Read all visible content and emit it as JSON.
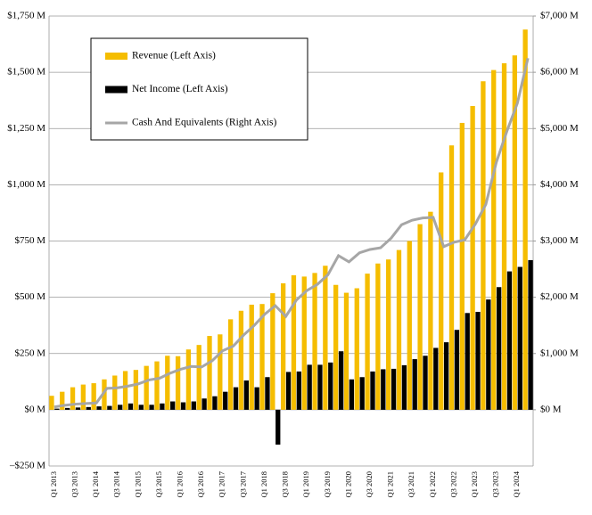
{
  "chart_data": {
    "type": "bar",
    "categories": [
      "Q1 2013",
      null,
      "Q3 2013",
      null,
      "Q1 2014",
      null,
      "Q3 2014",
      null,
      "Q1 2015",
      null,
      "Q3 2015",
      null,
      "Q1 2016",
      null,
      "Q3 2016",
      null,
      "Q1 2017",
      null,
      "Q3 2017",
      null,
      "Q1 2018",
      null,
      "Q3 2018",
      null,
      "Q1 2019",
      null,
      "Q3 2019",
      null,
      "Q1 2020",
      null,
      "Q3 2020",
      null,
      "Q1 2021",
      null,
      "Q3 2021",
      null,
      "Q1 2022",
      null,
      "Q3 2022",
      null,
      "Q1 2023",
      null,
      "Q3 2023",
      null,
      "Q1 2024",
      null
    ],
    "series": [
      {
        "name": "Revenue (Left Axis)",
        "color": "#f5bd00",
        "values": [
          62,
          80,
          100,
          112,
          118,
          135,
          152,
          172,
          177,
          195,
          215,
          240,
          238,
          268,
          288,
          328,
          335,
          402,
          440,
          467,
          470,
          518,
          562,
          598,
          592,
          608,
          640,
          555,
          520,
          540,
          605,
          650,
          668,
          710,
          750,
          825,
          880,
          1055,
          1175,
          1275,
          1350,
          1460,
          1510,
          1540,
          1575,
          1690
        ]
      },
      {
        "name": "Net Income (Left Axis)",
        "color": "#000000",
        "values": [
          5,
          8,
          10,
          12,
          15,
          17,
          22,
          28,
          22,
          22,
          28,
          37,
          33,
          37,
          50,
          60,
          80,
          100,
          130,
          100,
          145,
          -155,
          168,
          170,
          200,
          200,
          210,
          260,
          135,
          145,
          170,
          180,
          182,
          198,
          225,
          240,
          275,
          300,
          355,
          430,
          435,
          490,
          545,
          615,
          635,
          665
        ]
      },
      {
        "name": "Cash And Equivalents (Right Axis)",
        "color": "#a6a6a6",
        "type": "line",
        "axis": "y2",
        "values": [
          50,
          80,
          100,
          110,
          120,
          380,
          390,
          420,
          460,
          530,
          560,
          650,
          720,
          770,
          760,
          870,
          1050,
          1130,
          1330,
          1500,
          1700,
          1850,
          1660,
          1950,
          2120,
          2230,
          2400,
          2740,
          2630,
          2790,
          2850,
          2880,
          3050,
          3290,
          3370,
          3410,
          3420,
          2900,
          2980,
          3020,
          3300,
          3650,
          4400,
          4950,
          5450,
          6250
        ]
      }
    ],
    "ylim": [
      -250,
      1750
    ],
    "yticks": [
      {
        "value": -250,
        "label": "–$250 M"
      },
      {
        "value": 0,
        "label": "$0 M"
      },
      {
        "value": 250,
        "label": "$250 M"
      },
      {
        "value": 500,
        "label": "$500 M"
      },
      {
        "value": 750,
        "label": "$750 M"
      },
      {
        "value": 1000,
        "label": "$1,000 M"
      },
      {
        "value": 1250,
        "label": "$1,250 M"
      },
      {
        "value": 1500,
        "label": "$1,500 M"
      },
      {
        "value": 1750,
        "label": "$1,750 M"
      }
    ],
    "y2lim": [
      -1000,
      7000
    ],
    "y2ticks": [
      {
        "value": 0,
        "label": "$0 M"
      },
      {
        "value": 1000,
        "label": "$1,000 M"
      },
      {
        "value": 2000,
        "label": "$2,000 M"
      },
      {
        "value": 3000,
        "label": "$3,000 M"
      },
      {
        "value": 4000,
        "label": "$4,000 M"
      },
      {
        "value": 5000,
        "label": "$5,000 M"
      },
      {
        "value": 6000,
        "label": "$6,000 M"
      },
      {
        "value": 7000,
        "label": "$7,000 M"
      }
    ],
    "grid": true
  }
}
